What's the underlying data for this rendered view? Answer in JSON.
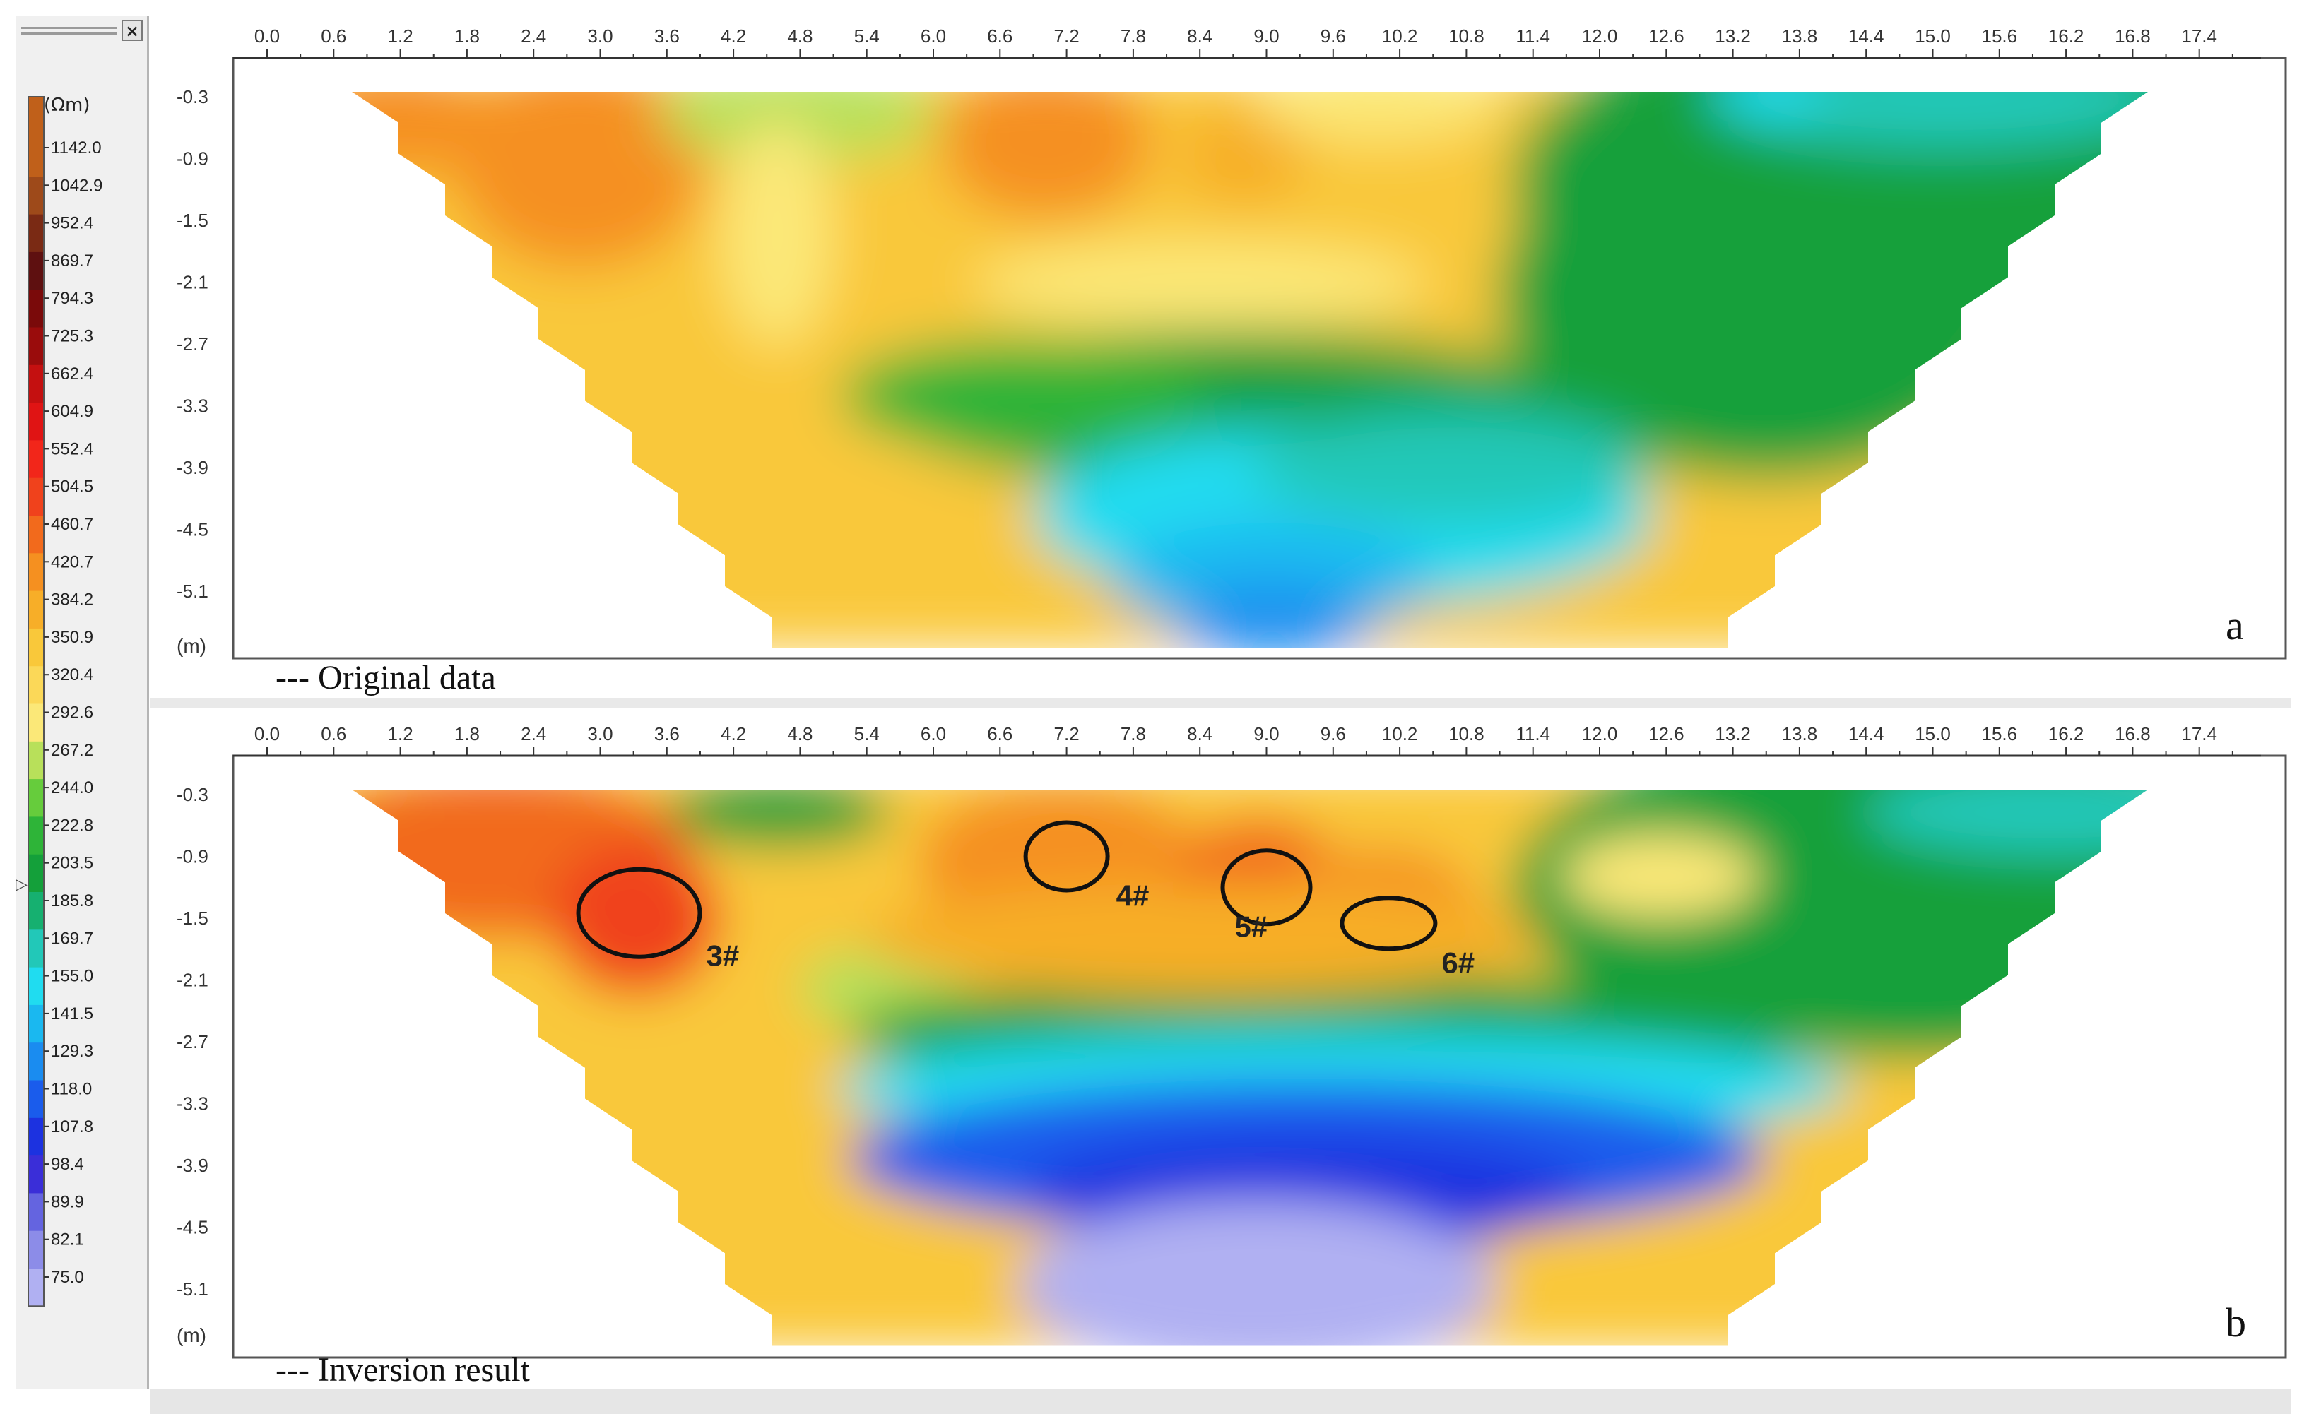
{
  "legend": {
    "unit": "(Ωm)",
    "close_symbol": "×",
    "values": [
      "1142.0",
      "1042.9",
      "952.4",
      "869.7",
      "794.3",
      "725.3",
      "662.4",
      "604.9",
      "552.4",
      "504.5",
      "460.7",
      "420.7",
      "384.2",
      "350.9",
      "320.4",
      "292.6",
      "267.2",
      "244.0",
      "222.8",
      "203.5",
      "185.8",
      "169.7",
      "155.0",
      "141.5",
      "129.3",
      "118.0",
      "107.8",
      "98.4",
      "89.9",
      "82.1",
      "75.0"
    ],
    "colors": [
      "#c0601a",
      "#9e4a1a",
      "#7a2a14",
      "#5e1010",
      "#7a0a0a",
      "#9a0c0c",
      "#c41010",
      "#e01414",
      "#f2261a",
      "#f0421c",
      "#f26a1c",
      "#f59020",
      "#f7ae28",
      "#f9c83a",
      "#fbd858",
      "#fbe878",
      "#b8e05a",
      "#66cc3c",
      "#2eb438",
      "#14a03a",
      "#16b070",
      "#22c8b8",
      "#20dcf0",
      "#1ab8f0",
      "#1a8cf0",
      "#1a5cec",
      "#1c32e0",
      "#3a2ed8",
      "#6464e0",
      "#8c8ce8",
      "#b0b0f2"
    ],
    "selected_marker": "▷"
  },
  "axes": {
    "x_ticks": [
      "0.0",
      "0.6",
      "1.2",
      "1.8",
      "2.4",
      "3.0",
      "3.6",
      "4.2",
      "4.8",
      "5.4",
      "6.0",
      "6.6",
      "7.2",
      "7.8",
      "8.4",
      "9.0",
      "9.6",
      "10.2",
      "10.8",
      "11.4",
      "12.0",
      "12.6",
      "13.2",
      "13.8",
      "14.4",
      "15.0",
      "15.6",
      "16.2",
      "16.8",
      "17.4"
    ],
    "y_ticks": [
      "-0.3",
      "-0.9",
      "-1.5",
      "-2.1",
      "-2.7",
      "-3.3",
      "-3.9",
      "-4.5",
      "-5.1"
    ],
    "y_unit": "(m)"
  },
  "panels": [
    {
      "id": "a",
      "letter": "a",
      "caption": "--- Original data"
    },
    {
      "id": "b",
      "letter": "b",
      "caption": "--- Inversion result",
      "anomalies": [
        {
          "label": "3#",
          "x": 3.35,
          "y": -1.45
        },
        {
          "label": "4#",
          "x": 7.2,
          "y": -0.9
        },
        {
          "label": "5#",
          "x": 9.0,
          "y": -1.2
        },
        {
          "label": "6#",
          "x": 10.1,
          "y": -1.55
        }
      ]
    }
  ]
}
